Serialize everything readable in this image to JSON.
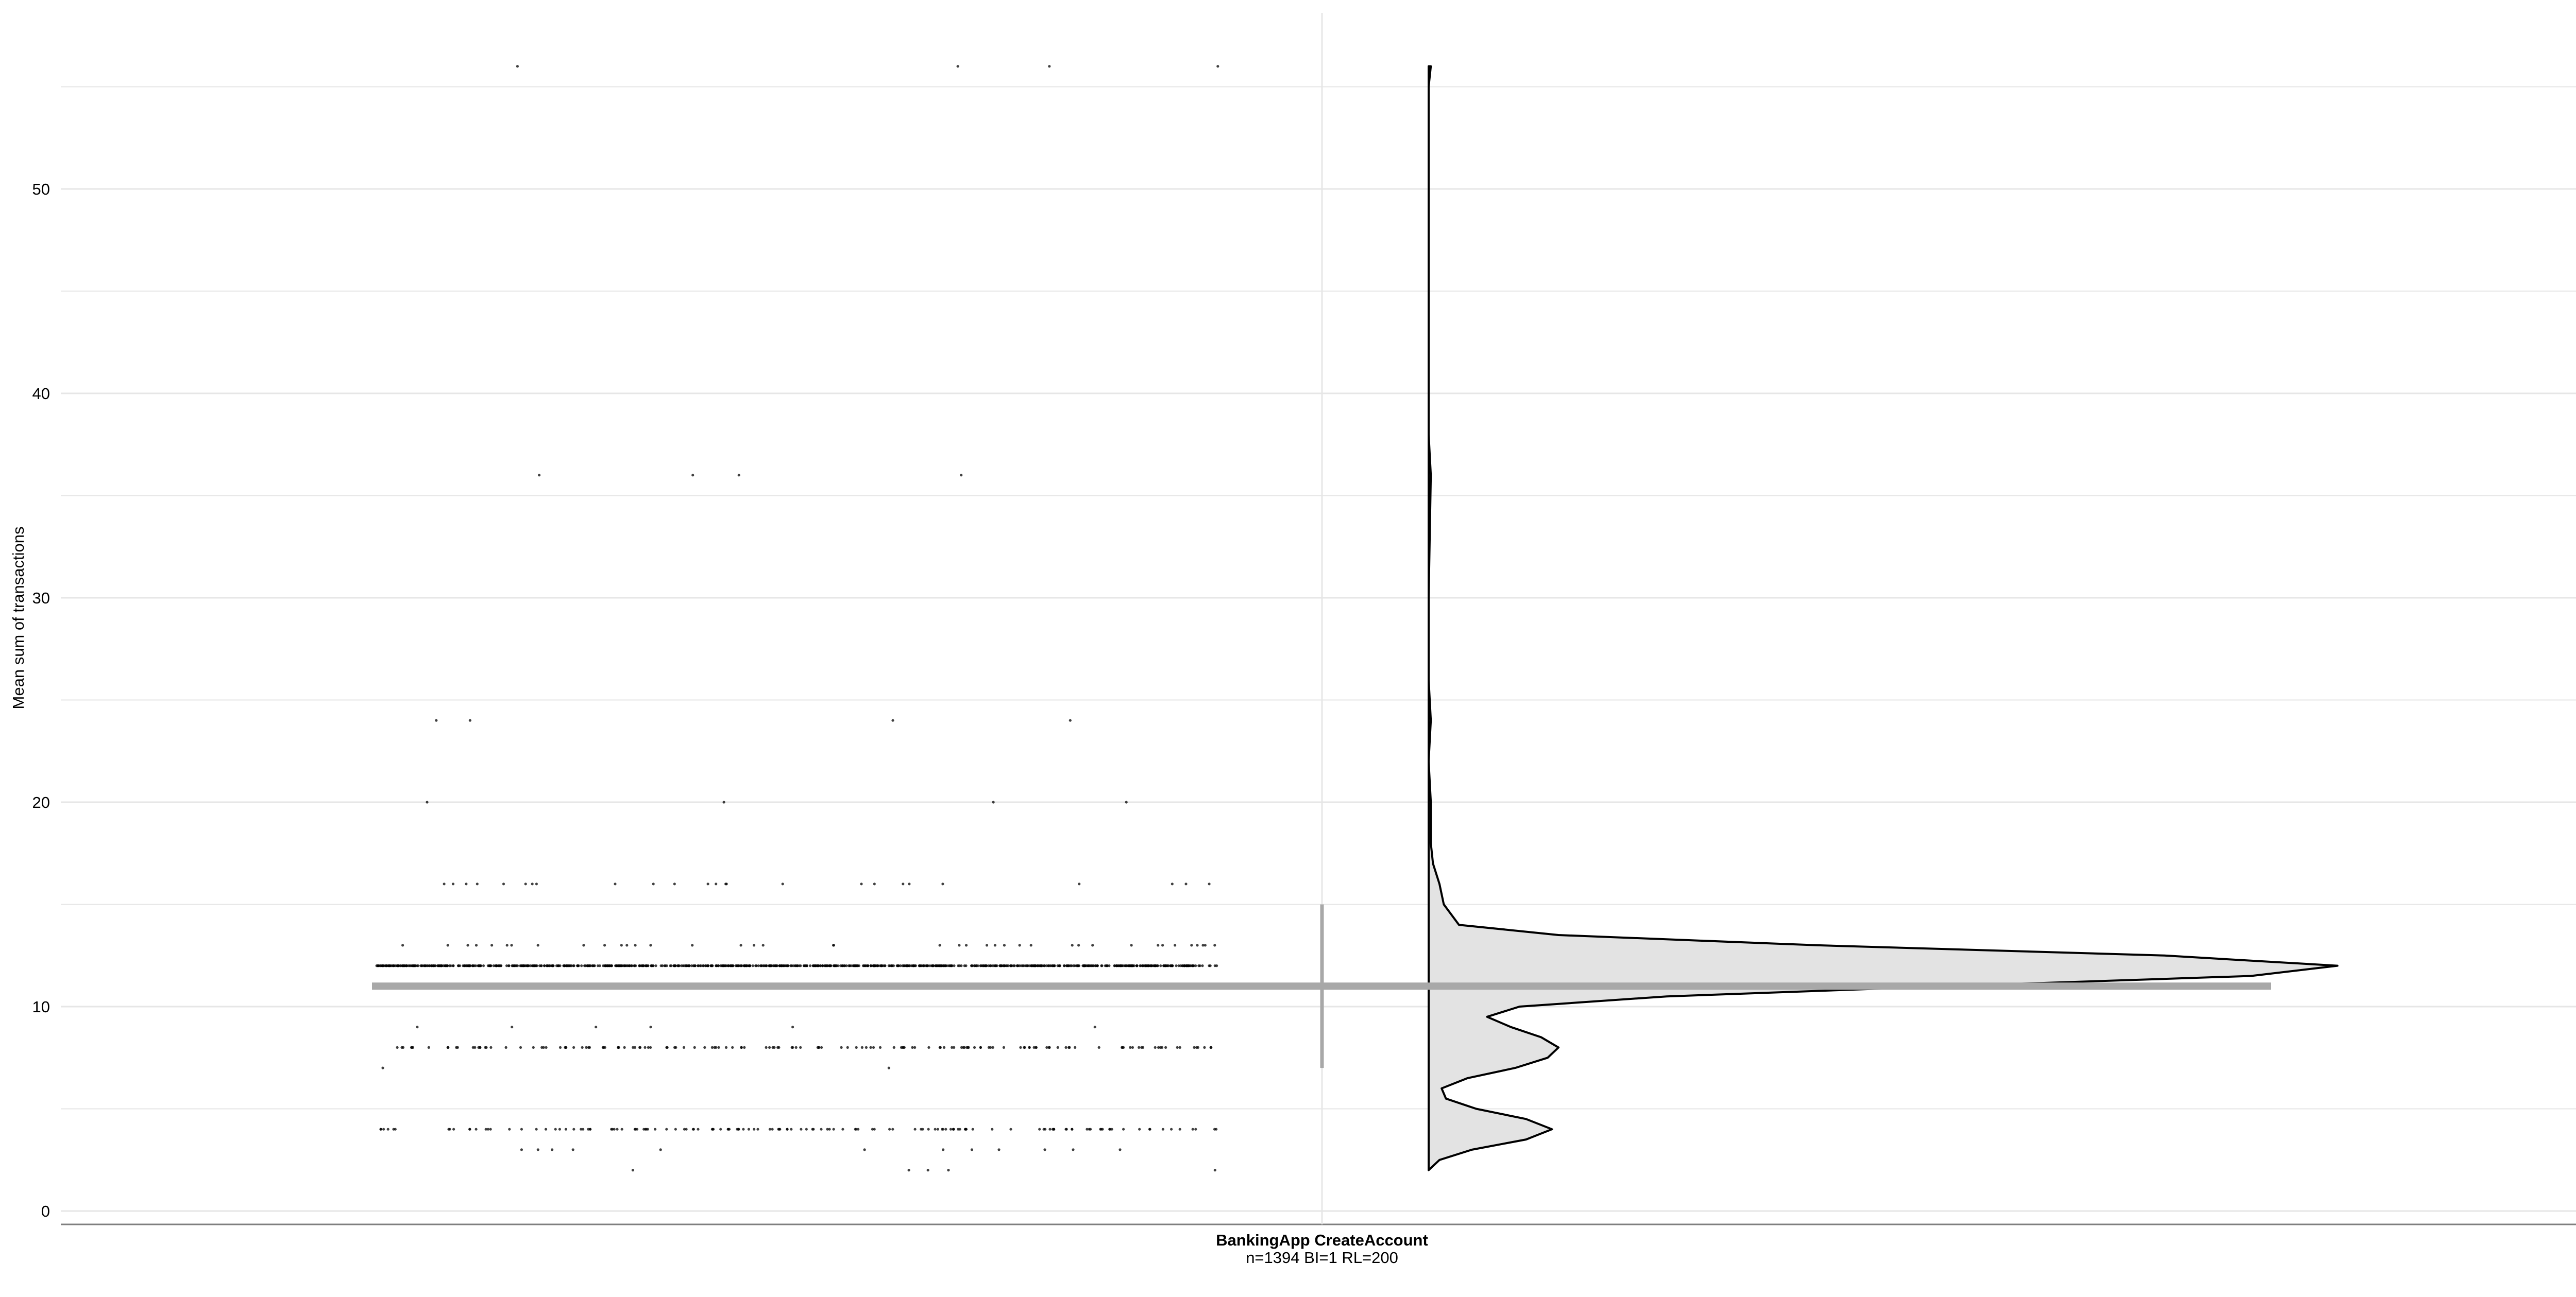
{
  "chart_data": {
    "type": "raincloud",
    "title": "",
    "ylabel": "Mean sum of transactions",
    "xlabel": "",
    "ylim": [
      0,
      56
    ],
    "yticks": [
      0,
      10,
      20,
      30,
      40,
      50
    ],
    "grid": true,
    "category": {
      "label": "BankingApp CreateAccount",
      "sublabel": "n=1394 BI=1 RL=200"
    },
    "mean": 11,
    "interval": [
      7,
      15
    ],
    "point_values": [
      2,
      3,
      4,
      7,
      8,
      9,
      11,
      12,
      13,
      16,
      20,
      24,
      36,
      56
    ],
    "density": [
      [
        2,
        0.0
      ],
      [
        2.5,
        0.05
      ],
      [
        3,
        0.2
      ],
      [
        3.5,
        0.45
      ],
      [
        4,
        0.57
      ],
      [
        4.5,
        0.45
      ],
      [
        5,
        0.22
      ],
      [
        5.5,
        0.08
      ],
      [
        6,
        0.06
      ],
      [
        6.5,
        0.18
      ],
      [
        7,
        0.4
      ],
      [
        7.5,
        0.55
      ],
      [
        8,
        0.6
      ],
      [
        8.5,
        0.52
      ],
      [
        9,
        0.38
      ],
      [
        9.5,
        0.27
      ],
      [
        10,
        0.42
      ],
      [
        10.5,
        1.1
      ],
      [
        11,
        2.4
      ],
      [
        11.5,
        3.8
      ],
      [
        12,
        4.2
      ],
      [
        12.5,
        3.4
      ],
      [
        13,
        1.8
      ],
      [
        13.5,
        0.6
      ],
      [
        14,
        0.14
      ],
      [
        15,
        0.07
      ],
      [
        16,
        0.05
      ],
      [
        17,
        0.02
      ],
      [
        18,
        0.01
      ],
      [
        20,
        0.01
      ],
      [
        22,
        0.0
      ],
      [
        24,
        0.01
      ],
      [
        26,
        0.0
      ],
      [
        30,
        0.0
      ],
      [
        36,
        0.01
      ],
      [
        38,
        0.0
      ],
      [
        45,
        0.0
      ],
      [
        50,
        0.0
      ],
      [
        55,
        0.0
      ],
      [
        56,
        0.01
      ]
    ],
    "colors": {
      "violin_fill": "#e3e3e3",
      "violin_stroke": "#000000",
      "mean_bar": "#a8a8a8",
      "points": "#000000",
      "grid": "#e6e6e6",
      "axis": "#7f7f7f"
    }
  }
}
